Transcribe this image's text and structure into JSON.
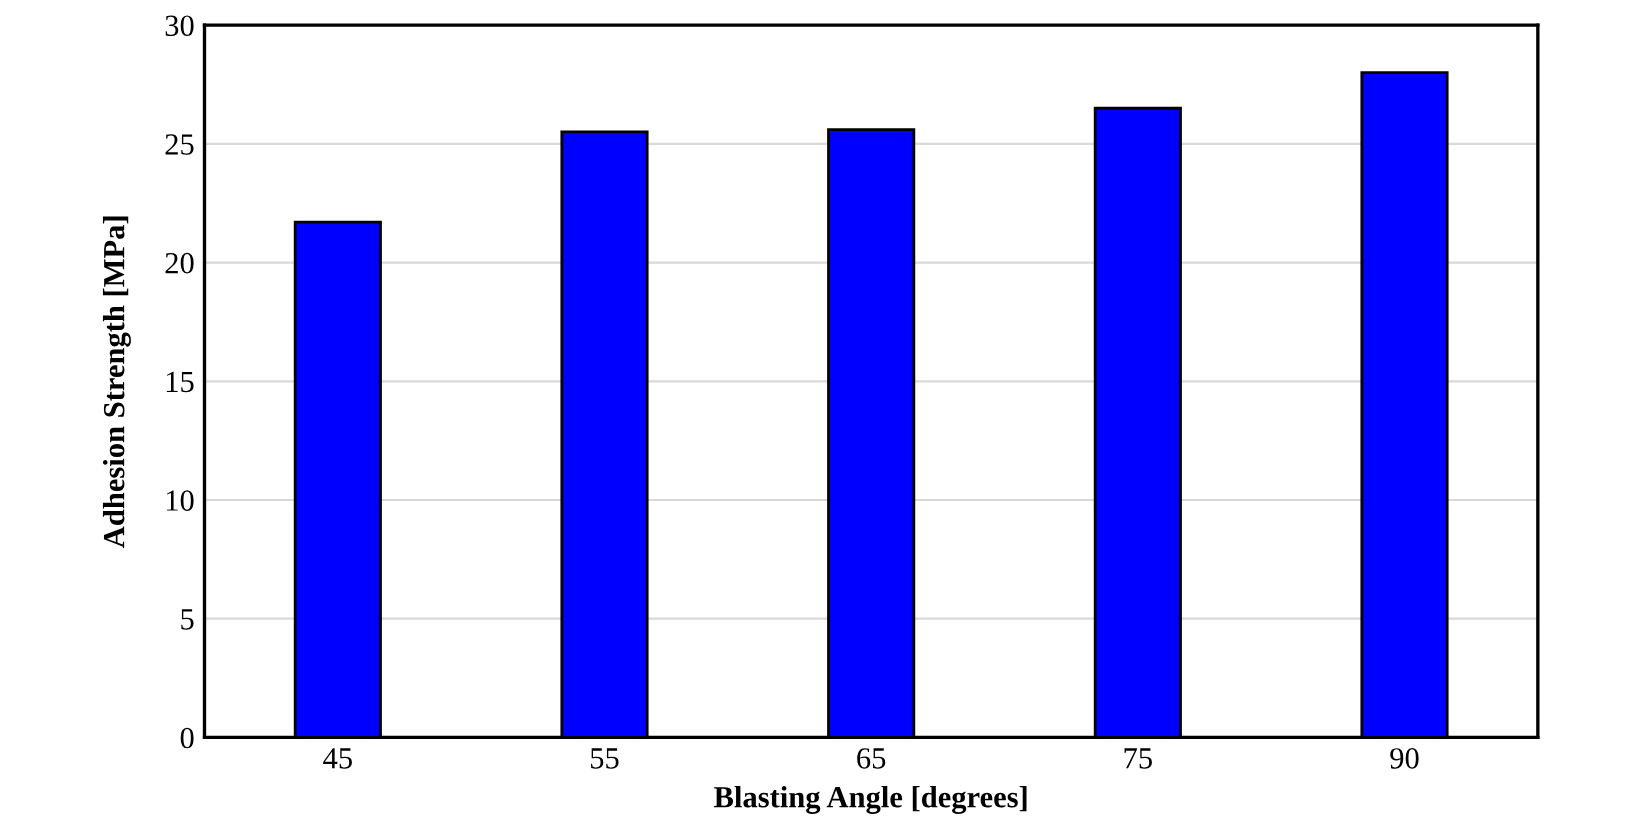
{
  "chart_data": {
    "type": "bar",
    "xlabel": "Blasting Angle [degrees]",
    "ylabel": "Adhesion Strength [MPa]",
    "categories": [
      "45",
      "55",
      "65",
      "75",
      "90"
    ],
    "values": [
      21.7,
      25.5,
      25.6,
      26.5,
      28.0
    ],
    "color": "#0000ff",
    "ylim": [
      0,
      30
    ],
    "yticks": [
      0,
      5,
      10,
      15,
      20,
      25,
      30
    ],
    "grid": "y"
  }
}
